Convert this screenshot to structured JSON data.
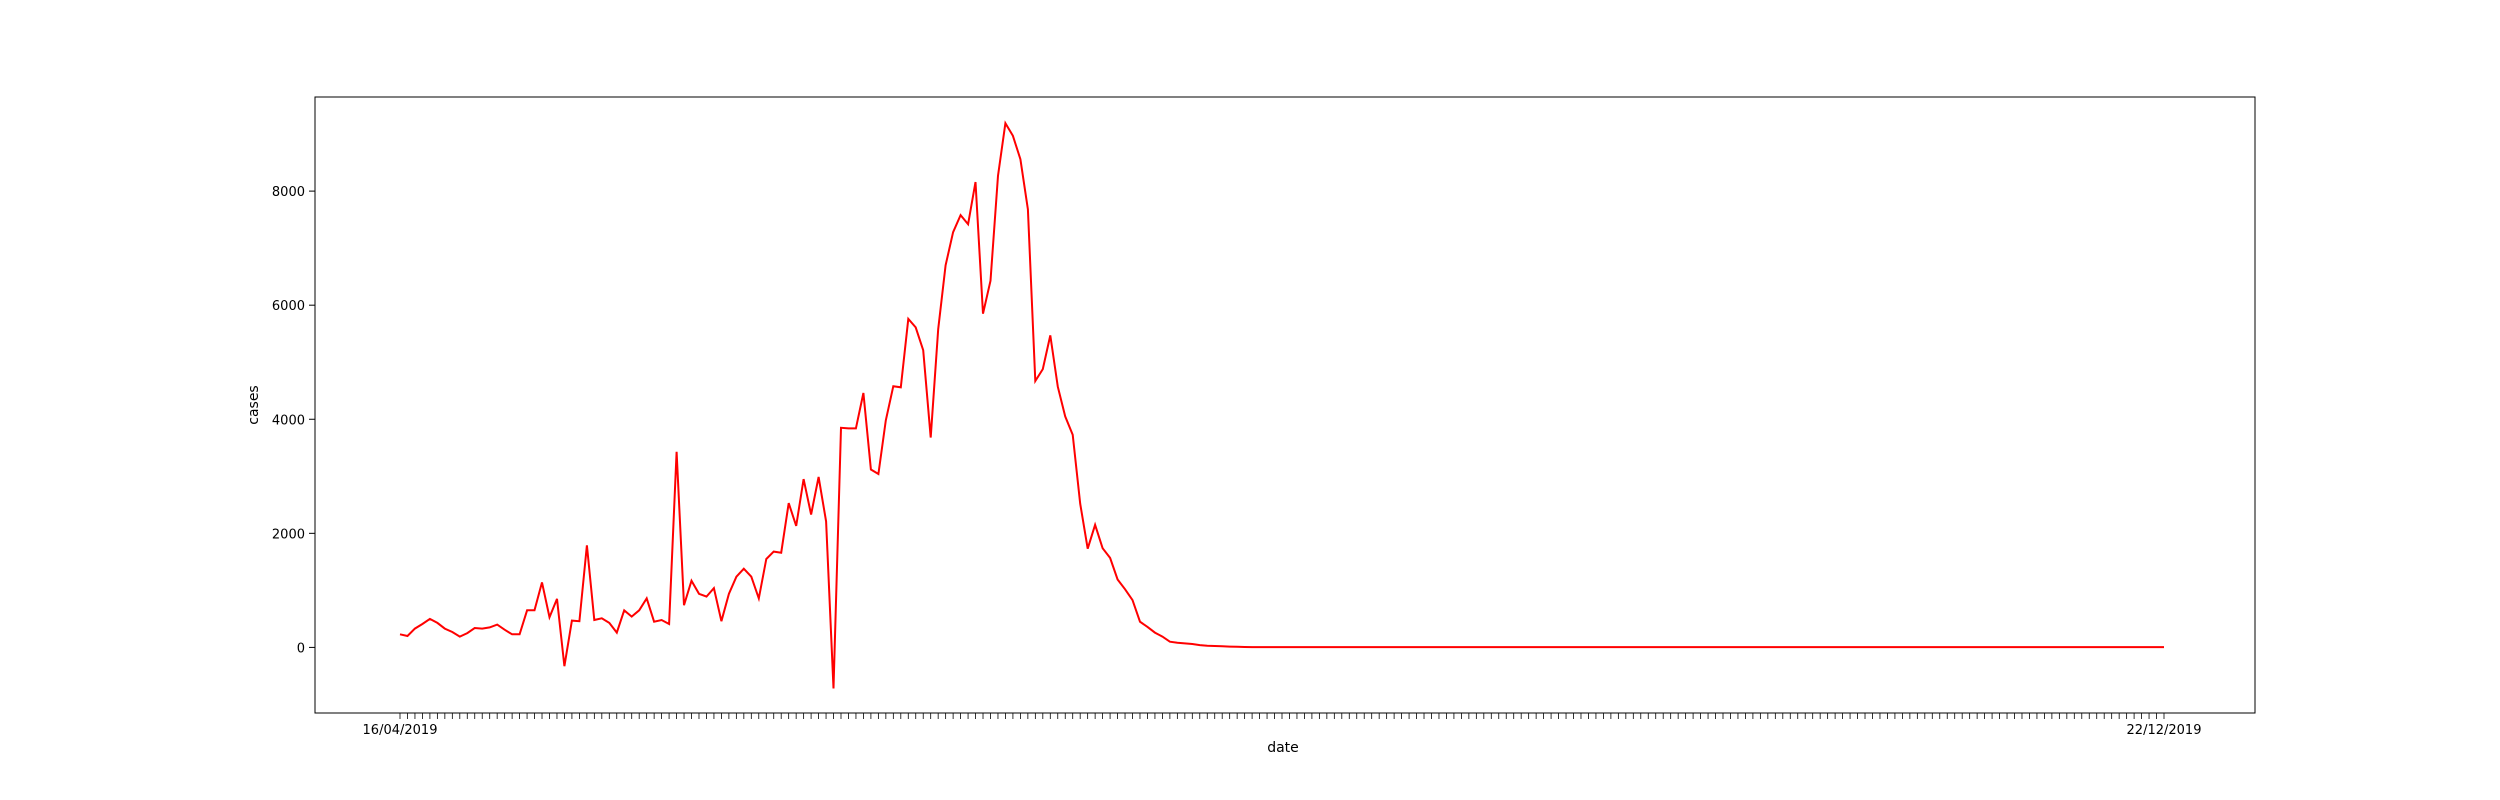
{
  "chart_data": {
    "type": "line",
    "title": "",
    "xlabel": "date",
    "ylabel": "cases",
    "ylim": [
      -1150,
      9650
    ],
    "yticks": [
      0,
      2000,
      4000,
      6000,
      8000
    ],
    "grid": false,
    "legend": "none",
    "line_color": "#ff0000",
    "x_tick_labels_visible": [
      "16/04/2019",
      "22/12/2019"
    ],
    "series": [
      {
        "values": [
          230,
          200,
          330,
          410,
          500,
          430,
          330,
          270,
          190,
          250,
          340,
          330,
          350,
          400,
          310,
          230,
          230,
          650,
          650,
          1140,
          530,
          850,
          -330,
          470,
          460,
          1790,
          480,
          510,
          430,
          260,
          650,
          540,
          650,
          860,
          450,
          480,
          410,
          3430,
          740,
          1170,
          940,
          890,
          1040,
          460,
          940,
          1240,
          1380,
          1240,
          860,
          1550,
          1680,
          1660,
          2530,
          2130,
          2950,
          2330,
          2990,
          2210,
          -720,
          3850,
          3840,
          3840,
          4460,
          3120,
          3040,
          3980,
          4580,
          4560,
          5760,
          5610,
          5210,
          3680,
          5580,
          6700,
          7280,
          7580,
          7420,
          8160,
          5850,
          6430,
          8270,
          9190,
          8970,
          8560,
          7680,
          4670,
          4880,
          5470,
          4570,
          4050,
          3730,
          2520,
          1730,
          2150,
          1740,
          1570,
          1190,
          1020,
          830,
          450,
          360,
          260,
          190,
          100,
          80,
          70,
          60,
          40,
          30,
          25,
          20,
          15,
          10,
          8,
          5,
          5,
          5,
          5,
          5,
          5,
          5,
          5,
          5,
          5,
          5,
          5,
          5,
          5,
          5,
          5,
          5,
          5,
          5,
          5,
          5,
          5,
          5,
          5,
          5,
          5,
          5,
          5,
          5,
          5,
          5,
          5,
          5,
          5,
          5,
          5,
          5,
          5,
          5,
          5,
          5,
          5,
          5,
          5,
          5,
          5,
          5,
          5,
          5,
          5,
          5,
          5,
          5,
          5,
          5,
          5,
          5,
          5,
          5,
          5,
          5,
          5,
          5,
          5,
          5,
          5,
          5,
          5,
          5,
          5,
          5,
          5,
          5,
          5,
          5,
          5,
          5,
          5,
          5,
          5,
          5,
          5,
          5,
          5,
          5,
          5,
          5,
          5,
          5,
          5,
          5,
          5,
          5,
          5,
          5,
          5,
          5,
          5,
          5,
          5,
          5,
          5,
          5,
          5,
          5,
          5,
          5,
          5,
          5,
          5,
          5,
          5,
          5,
          5,
          5,
          5,
          5,
          5,
          5,
          5,
          5,
          5,
          5
        ]
      }
    ]
  }
}
